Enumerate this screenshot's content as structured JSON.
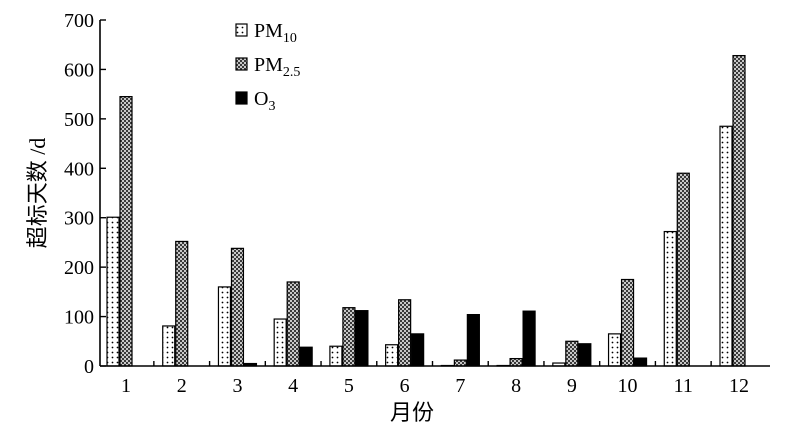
{
  "chart_data": {
    "type": "bar",
    "categories": [
      "1",
      "2",
      "3",
      "4",
      "5",
      "6",
      "7",
      "8",
      "9",
      "10",
      "11",
      "12"
    ],
    "series": [
      {
        "key": "pm10",
        "base": "PM",
        "sub": "10",
        "pattern": "dots",
        "values": [
          301,
          81,
          160,
          95,
          40,
          43,
          1,
          1,
          6,
          65,
          272,
          485
        ]
      },
      {
        "key": "pm25",
        "base": "PM",
        "sub": "2.5",
        "pattern": "checker",
        "values": [
          545,
          252,
          238,
          170,
          118,
          134,
          12,
          15,
          50,
          175,
          390,
          628
        ]
      },
      {
        "key": "o3",
        "base": "O",
        "sub": "3",
        "pattern": "solid",
        "values": [
          0,
          0,
          5,
          38,
          112,
          65,
          104,
          111,
          45,
          16,
          0,
          0
        ]
      }
    ],
    "yticks": [
      0,
      100,
      200,
      300,
      400,
      500,
      600,
      700
    ],
    "ylim": [
      0,
      700
    ],
    "xlabel": "月份",
    "ylabel": "超标天数 /d",
    "legend_position": "top-left-center",
    "grid": false
  }
}
